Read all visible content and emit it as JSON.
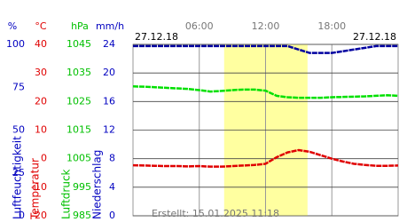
{
  "chart_data": {
    "type": "line",
    "dates": [
      "27.12.18",
      "27.12.18"
    ],
    "note": "Erstellt: 15.01.2025 11:18",
    "xlim": [
      0,
      24
    ],
    "xticks": [
      {
        "value": 6,
        "label": "06:00"
      },
      {
        "value": 12,
        "label": "12:00"
      },
      {
        "value": 18,
        "label": "18:00"
      }
    ],
    "daylight": [
      8.25,
      15.8
    ],
    "axes": [
      {
        "unit": "%",
        "title": "Luftfeuchtigkeit",
        "color": "#0000c0",
        "ylim": [
          0,
          100
        ],
        "yticks": [
          0,
          25,
          50,
          75,
          100
        ]
      },
      {
        "unit": "°C",
        "title": "Temperatur",
        "color": "#e00000",
        "ylim": [
          -20,
          40
        ],
        "yticks": [
          -20,
          -10,
          0,
          10,
          20,
          30,
          40
        ]
      },
      {
        "unit": "hPa",
        "title": "Luftdruck",
        "color": "#00c000",
        "ylim": [
          985,
          1045
        ],
        "yticks": [
          985,
          995,
          1005,
          1015,
          1025,
          1035,
          1045
        ]
      },
      {
        "unit": "mm/h",
        "title": "Niederschlag",
        "color": "#0000c0",
        "ylim": [
          0,
          24
        ],
        "yticks": [
          0,
          4,
          8,
          12,
          16,
          20,
          24
        ]
      }
    ],
    "x": [
      0,
      1,
      2,
      3,
      4,
      5,
      6,
      7,
      8,
      9,
      10,
      11,
      12,
      13,
      14,
      15,
      16,
      17,
      18,
      19,
      20,
      21,
      22,
      23,
      24
    ],
    "series": [
      {
        "axis": 0,
        "color": "#0000a0",
        "values": [
          99,
          99,
          99,
          99,
          99,
          99,
          99,
          99,
          99,
          99,
          99,
          99,
          99,
          99,
          99,
          97,
          95,
          95,
          95,
          96,
          97,
          98,
          99,
          99,
          99
        ]
      },
      {
        "axis": 2,
        "color": "#00e000",
        "values": [
          1030.3,
          1030.2,
          1030,
          1029.8,
          1029.6,
          1029.4,
          1029,
          1028.5,
          1028.7,
          1029,
          1029.2,
          1029.2,
          1028.8,
          1027,
          1026.5,
          1026.3,
          1026.3,
          1026.3,
          1026.5,
          1026.6,
          1026.7,
          1026.8,
          1027,
          1027.2,
          1027
        ]
      },
      {
        "axis": 1,
        "color": "#e00000",
        "values": [
          -2.3,
          -2.4,
          -2.5,
          -2.6,
          -2.6,
          -2.7,
          -2.6,
          -2.8,
          -2.8,
          -2.6,
          -2.4,
          -2.2,
          -1.8,
          0.5,
          2.2,
          3,
          2.4,
          1.2,
          0,
          -1,
          -1.8,
          -2.2,
          -2.5,
          -2.5,
          -2.4
        ]
      }
    ]
  }
}
